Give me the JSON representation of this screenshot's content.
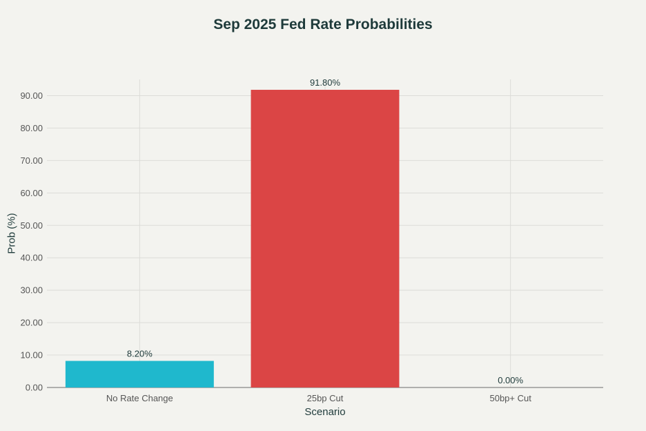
{
  "chart_data": {
    "type": "bar",
    "title": "Sep 2025 Fed Rate Probabilities",
    "xlabel": "Scenario",
    "ylabel": "Prob (%)",
    "categories": [
      "No Rate Change",
      "25bp Cut",
      "50bp+ Cut"
    ],
    "values": [
      8.2,
      91.8,
      0.0
    ],
    "data_labels": [
      "8.20%",
      "91.80%",
      "0.00%"
    ],
    "colors": [
      "#1fb8cd",
      "#db4545",
      "#d2ba4c"
    ],
    "ylim": [
      0,
      95
    ],
    "yticks": [
      0,
      10,
      20,
      30,
      40,
      50,
      60,
      70,
      80,
      90
    ],
    "ytick_labels": [
      "0.00",
      "10.00",
      "20.00",
      "30.00",
      "40.00",
      "50.00",
      "60.00",
      "70.00",
      "80.00",
      "90.00"
    ],
    "grid": true,
    "legend": "none"
  }
}
